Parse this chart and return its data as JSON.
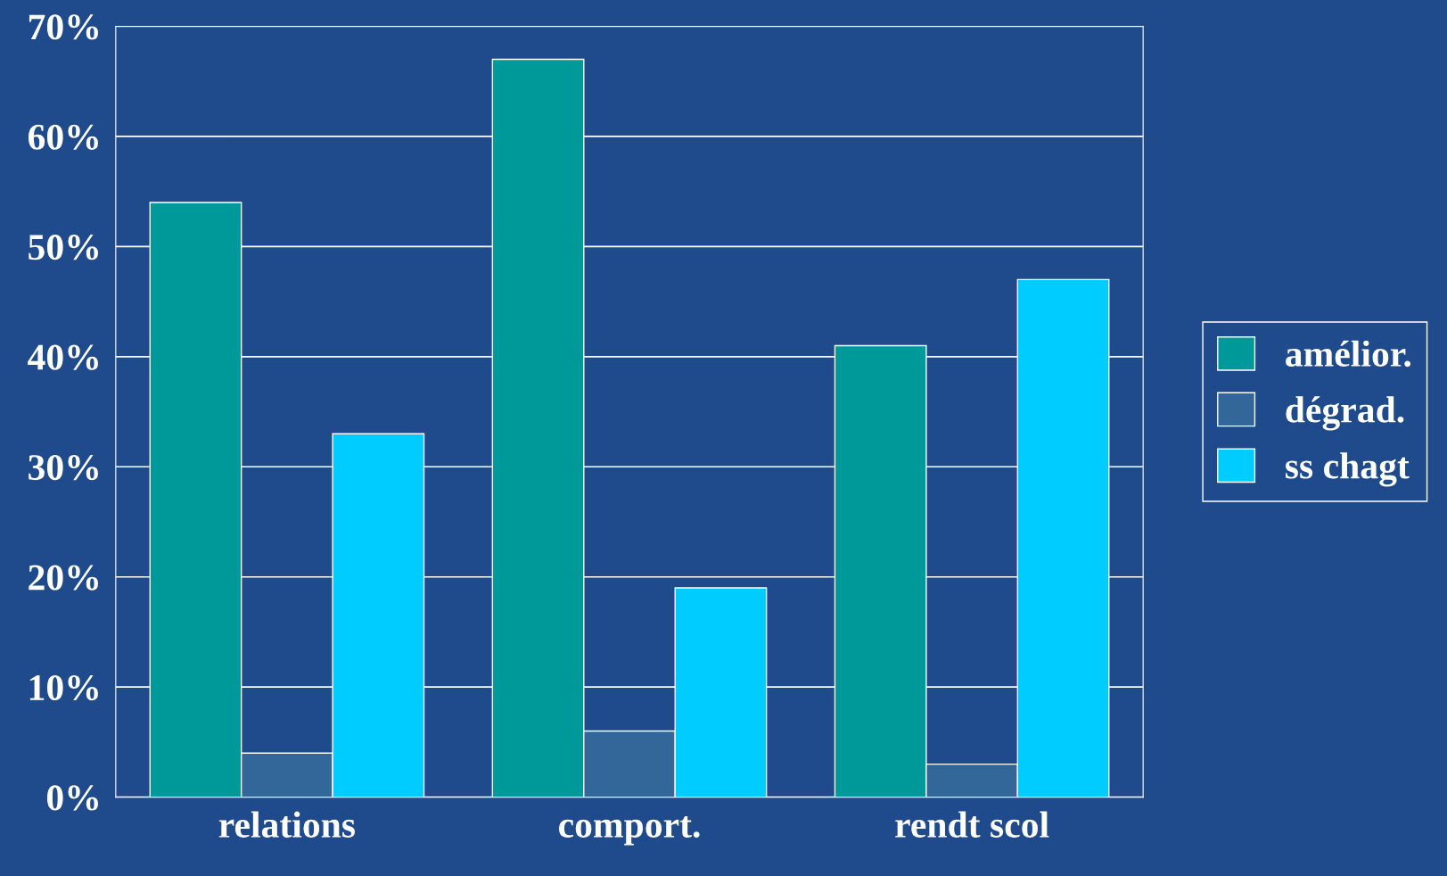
{
  "chart_data": {
    "type": "bar",
    "categories": [
      "relations",
      "comport.",
      "rendt scol"
    ],
    "series": [
      {
        "name": "amélior.",
        "color": "#009999",
        "values": [
          54,
          67,
          41
        ]
      },
      {
        "name": "dégrad.",
        "color": "#336699",
        "values": [
          4,
          6,
          3
        ]
      },
      {
        "name": "ss chagt",
        "color": "#00ccff",
        "values": [
          33,
          19,
          47
        ]
      }
    ],
    "ylim": [
      0,
      70
    ],
    "yticks": [
      {
        "value": 0,
        "label": "0%"
      },
      {
        "value": 10,
        "label": "10%"
      },
      {
        "value": 20,
        "label": "20%"
      },
      {
        "value": 30,
        "label": "30%"
      },
      {
        "value": 40,
        "label": "40%"
      },
      {
        "value": 50,
        "label": "50%"
      },
      {
        "value": 60,
        "label": "60%"
      },
      {
        "value": 70,
        "label": "70%"
      }
    ],
    "grid": "y",
    "legend": "right"
  }
}
